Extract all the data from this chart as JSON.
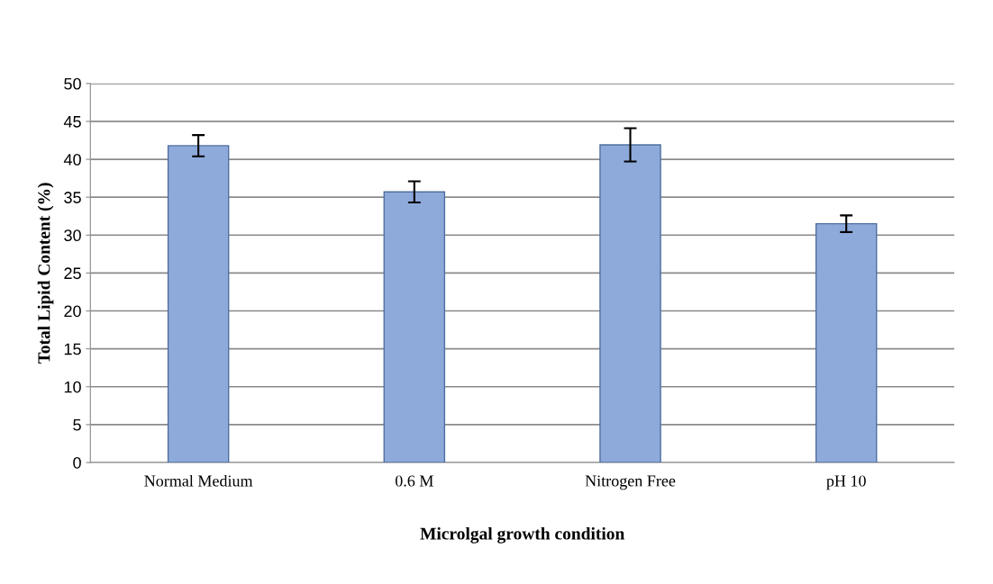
{
  "chart_data": {
    "type": "bar",
    "xlabel": "Microlgal growth condition",
    "ylabel": "Total Lipid Content (%)",
    "categories": [
      "Normal Medium",
      "0.6 M",
      "Nitrogen Free",
      "pH 10"
    ],
    "series": [
      {
        "color": "#8eaadb",
        "values": [
          41.8,
          35.7,
          41.9,
          31.5
        ],
        "errors": [
          1.4,
          1.4,
          2.2,
          1.1
        ]
      }
    ],
    "ylim": [
      0,
      50
    ],
    "yticks": [
      0,
      5,
      10,
      15,
      20,
      25,
      30,
      35,
      40,
      45,
      50
    ],
    "grid": "y",
    "legend": false
  }
}
